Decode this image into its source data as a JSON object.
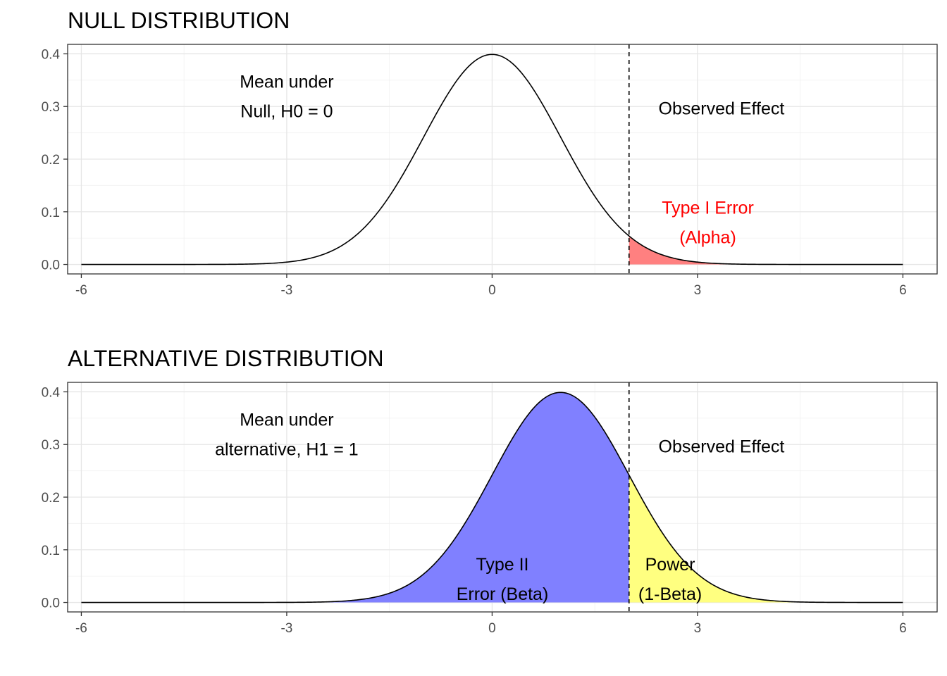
{
  "chart_data": [
    {
      "type": "area",
      "title": "NULL DISTRIBUTION",
      "xlabel": "",
      "ylabel": "",
      "xlim": [
        -6.2,
        6.5
      ],
      "ylim": [
        -0.018,
        0.418
      ],
      "x_ticks": [
        "-6",
        "-3",
        "0",
        "3",
        "6"
      ],
      "y_ticks": [
        "0.0",
        "0.1",
        "0.2",
        "0.3",
        "0.4"
      ],
      "grid": true,
      "curve": {
        "distribution": "normal",
        "mean": 0,
        "sd": 1,
        "x_range": [
          -6,
          6
        ]
      },
      "observed_effect_x": 2,
      "shaded_regions": [
        {
          "from": 2,
          "to": 6,
          "color": "#ff8080"
        }
      ],
      "annotations": [
        {
          "lines": [
            "Mean under",
            "Null, H0 = 0"
          ],
          "x": -3,
          "y": 0.32,
          "color": "#000000"
        },
        {
          "lines": [
            "Observed Effect"
          ],
          "x": 3.35,
          "y": 0.297,
          "color": "#000000"
        },
        {
          "lines": [
            "Type I Error",
            "(Alpha)"
          ],
          "x": 3.15,
          "y": 0.08,
          "color": "#ff0000"
        }
      ]
    },
    {
      "type": "area",
      "title": "ALTERNATIVE DISTRIBUTION",
      "xlabel": "",
      "ylabel": "",
      "xlim": [
        -6.2,
        6.5
      ],
      "ylim": [
        -0.018,
        0.418
      ],
      "x_ticks": [
        "-6",
        "-3",
        "0",
        "3",
        "6"
      ],
      "y_ticks": [
        "0.0",
        "0.1",
        "0.2",
        "0.3",
        "0.4"
      ],
      "grid": true,
      "curve": {
        "distribution": "normal",
        "mean": 1,
        "sd": 1,
        "x_range": [
          -6,
          6
        ]
      },
      "observed_effect_x": 2,
      "shaded_regions": [
        {
          "from": -6,
          "to": 2,
          "color": "#8080ff"
        },
        {
          "from": 2,
          "to": 6,
          "color": "#ffff80"
        }
      ],
      "annotations": [
        {
          "lines": [
            "Mean under",
            "alternative, H1 = 1"
          ],
          "x": -3,
          "y": 0.32,
          "color": "#000000"
        },
        {
          "lines": [
            "Observed Effect"
          ],
          "x": 3.35,
          "y": 0.297,
          "color": "#000000"
        },
        {
          "lines": [
            "Type II",
            "Error (Beta)"
          ],
          "x": 0.15,
          "y": 0.045,
          "color": "#000000"
        },
        {
          "lines": [
            "Power",
            "(1-Beta)"
          ],
          "x": 2.6,
          "y": 0.045,
          "color": "#000000"
        }
      ]
    }
  ]
}
